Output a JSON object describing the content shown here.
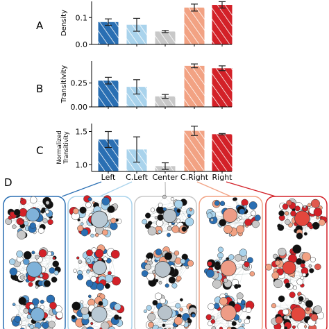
{
  "panel_d_label": "D",
  "colors": {
    "Left": "#2a6fb3",
    "C.Left": "#a9d3ec",
    "Center": "#c8c8c8",
    "C.Right": "#f2a283",
    "Right": "#d32128"
  },
  "chart_data": [
    {
      "type": "bar",
      "panel": "A",
      "ylabel": "Density",
      "categories": [
        "Left",
        "C.Left",
        "Center",
        "C.Right",
        "Right"
      ],
      "values": [
        0.083,
        0.073,
        0.048,
        0.137,
        0.147
      ],
      "errors": [
        0.012,
        0.024,
        0.004,
        0.013,
        0.012
      ],
      "ylim": [
        0.0,
        0.16
      ],
      "yticks": [
        0.0,
        0.1
      ],
      "ytick_labels": [
        "0.0",
        "0.1"
      ],
      "hatch": "diagonal"
    },
    {
      "type": "bar",
      "panel": "B",
      "ylabel": "Transitivity",
      "categories": [
        "Left",
        "C.Left",
        "Center",
        "C.Right",
        "Right"
      ],
      "values": [
        0.275,
        0.21,
        0.11,
        0.43,
        0.405
      ],
      "errors": [
        0.035,
        0.075,
        0.02,
        0.02,
        0.025
      ],
      "ylim": [
        0.0,
        0.48
      ],
      "yticks": [
        0.0,
        0.25
      ],
      "ytick_labels": [
        "0.00",
        "0.25"
      ],
      "hatch": "diagonal"
    },
    {
      "type": "bar",
      "panel": "C",
      "ylabel": [
        "Normalized",
        "Transitivity"
      ],
      "categories": [
        "Left",
        "C.Left",
        "Center",
        "C.Right",
        "Right"
      ],
      "values": [
        1.38,
        1.23,
        0.98,
        1.51,
        1.46
      ],
      "errors": [
        0.12,
        0.19,
        0.05,
        0.07,
        0.01
      ],
      "ylim": [
        0.9,
        1.62
      ],
      "yticks": [
        1.0,
        1.5
      ],
      "ytick_labels": [
        "1.0",
        "1.5"
      ],
      "hatch": "diagonal"
    }
  ],
  "network_panels": [
    "Left",
    "C.Left",
    "Center",
    "C.Right",
    "Right"
  ]
}
